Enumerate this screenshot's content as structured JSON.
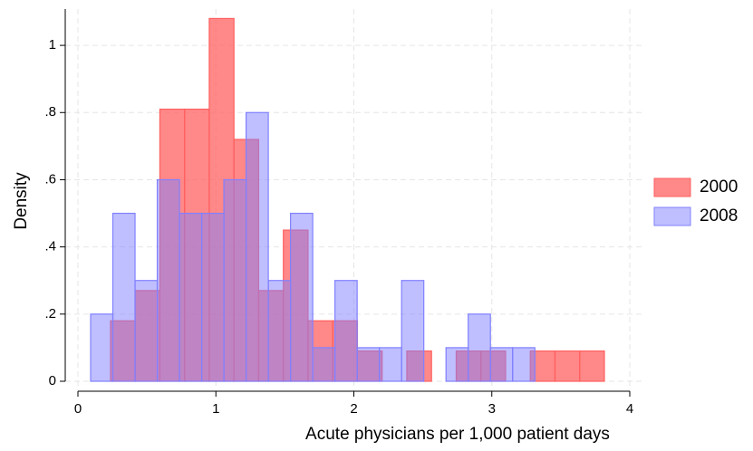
{
  "chart_data": {
    "type": "histogram",
    "xlabel": "Acute physicians per 1,000 patient days",
    "ylabel": "Density",
    "xlim": [
      0,
      4
    ],
    "xticks": [
      0,
      1,
      2,
      3,
      4
    ],
    "ylim": [
      0,
      1.1
    ],
    "yticks": [
      0,
      {
        "value": 0.2,
        "label": ".2"
      },
      {
        "value": 0.4,
        "label": ".4"
      },
      {
        "value": 0.6,
        "label": ".6"
      },
      {
        "value": 0.8,
        "label": ".8"
      },
      1
    ],
    "grid": true,
    "legend": "right",
    "series": [
      {
        "name": "2000",
        "color": "#ff6060",
        "bins": [
          0.236,
          0.415,
          0.594,
          0.773,
          0.952,
          1.131,
          1.31,
          1.489,
          1.668,
          1.847,
          2.026,
          2.205,
          2.384,
          2.563,
          2.742,
          2.921,
          3.1,
          3.279,
          3.458,
          3.637,
          3.816
        ],
        "values": [
          0.18,
          0.27,
          0.81,
          0.81,
          1.08,
          0.72,
          0.27,
          0.45,
          0.18,
          0.18,
          0.09,
          0,
          0.09,
          0,
          0.09,
          0.09,
          0,
          0.09,
          0.09,
          0.09
        ]
      },
      {
        "name": "2008",
        "color": "#8080ff",
        "bins": [
          0.092,
          0.253,
          0.414,
          0.575,
          0.736,
          0.897,
          1.058,
          1.219,
          1.38,
          1.541,
          1.702,
          1.863,
          2.024,
          2.185,
          2.346,
          2.507,
          2.668,
          2.829,
          2.99,
          3.151,
          3.312
        ],
        "values": [
          0.2,
          0.5,
          0.3,
          0.6,
          0.5,
          0.5,
          0.6,
          0.8,
          0.3,
          0.5,
          0.1,
          0.3,
          0.1,
          0.1,
          0.3,
          0,
          0.1,
          0.2,
          0.1,
          0.1
        ]
      }
    ]
  }
}
